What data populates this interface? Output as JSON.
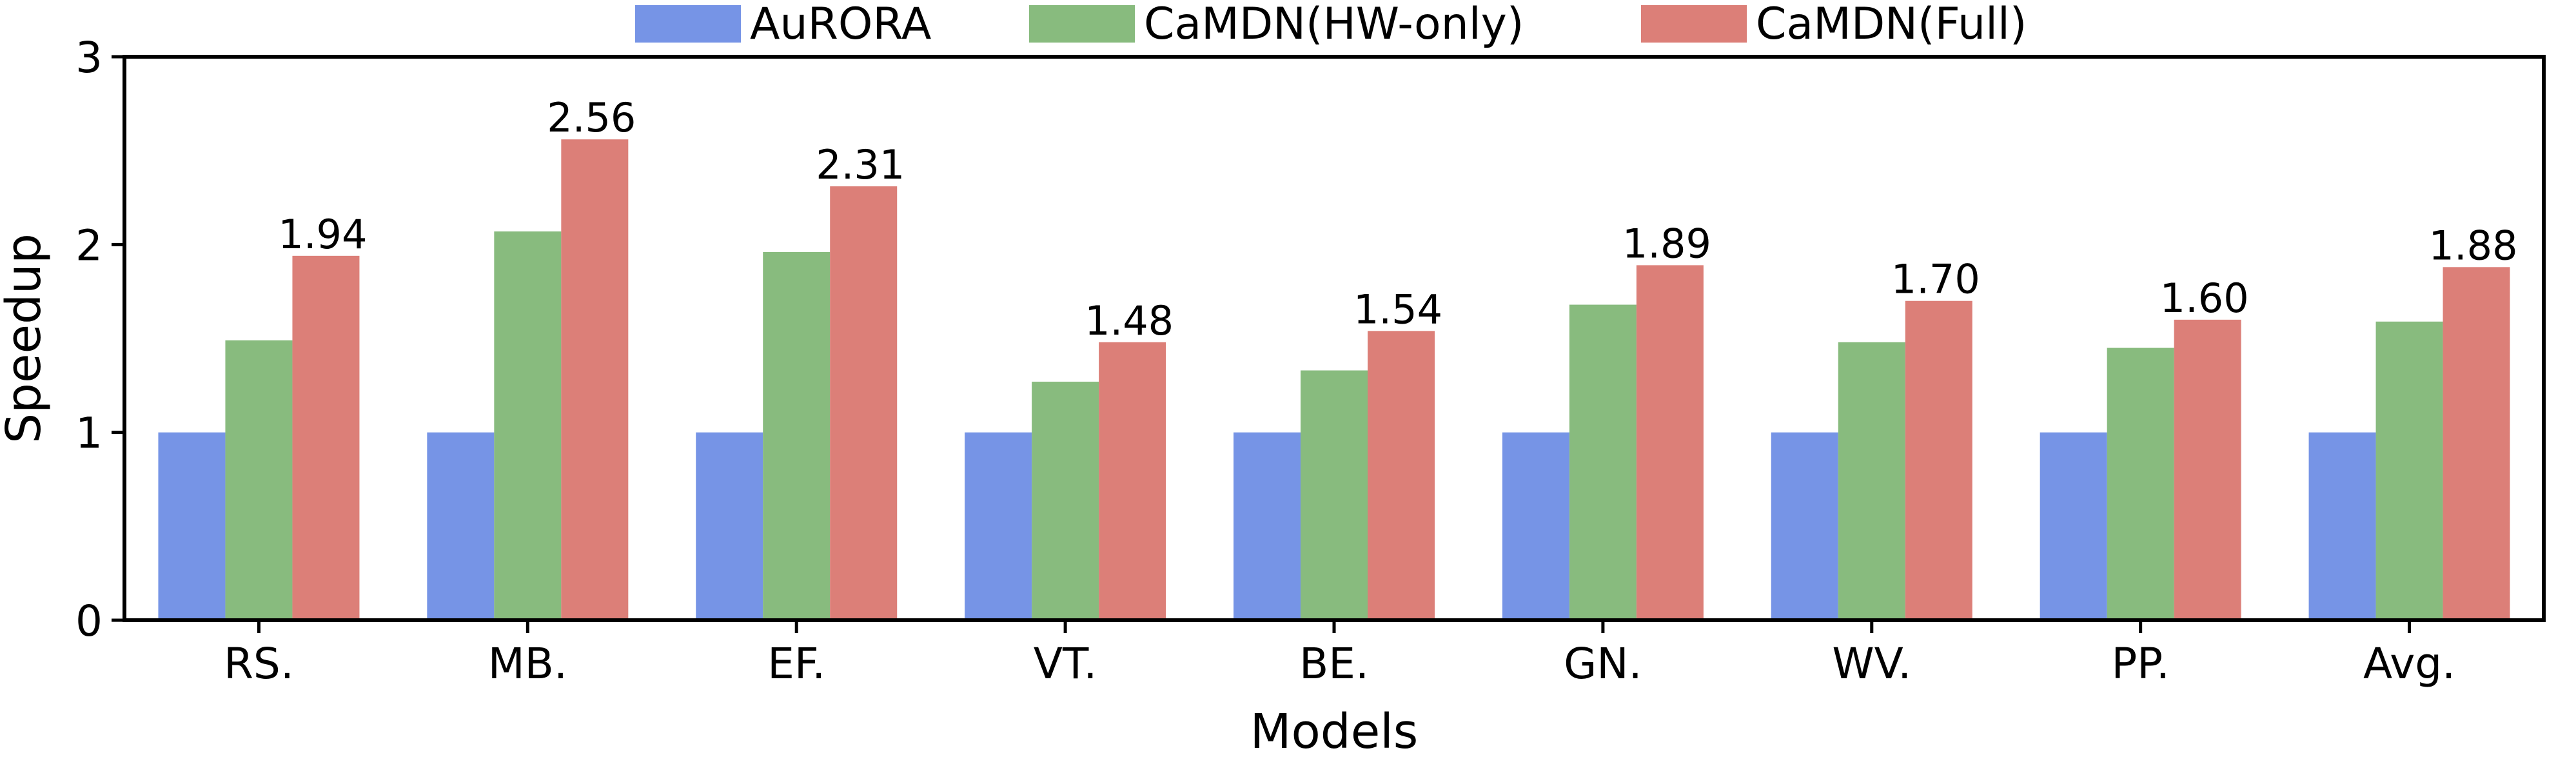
{
  "chart_data": {
    "type": "bar",
    "title": "",
    "xlabel": "Models",
    "ylabel": "Speedup",
    "ylim": [
      0,
      3
    ],
    "yticks": [
      0,
      1,
      2,
      3
    ],
    "grid": false,
    "legend_position": "top",
    "categories": [
      "RS.",
      "MB.",
      "EF.",
      "VT.",
      "BE.",
      "GN.",
      "WV.",
      "PP.",
      "Avg."
    ],
    "series": [
      {
        "name": "AuRORA",
        "color": "#7694e6",
        "values": [
          1.0,
          1.0,
          1.0,
          1.0,
          1.0,
          1.0,
          1.0,
          1.0,
          1.0
        ]
      },
      {
        "name": "CaMDN(HW-only)",
        "color": "#88bb7e",
        "values": [
          1.49,
          2.07,
          1.96,
          1.27,
          1.33,
          1.68,
          1.48,
          1.45,
          1.59
        ]
      },
      {
        "name": "CaMDN(Full)",
        "color": "#dc7f78",
        "values": [
          1.94,
          2.56,
          2.31,
          1.48,
          1.54,
          1.89,
          1.7,
          1.6,
          1.88
        ]
      }
    ],
    "data_labels": {
      "series_index": 2,
      "labels": [
        "1.94",
        "2.56",
        "2.31",
        "1.48",
        "1.54",
        "1.89",
        "1.70",
        "1.60",
        "1.88"
      ]
    }
  }
}
